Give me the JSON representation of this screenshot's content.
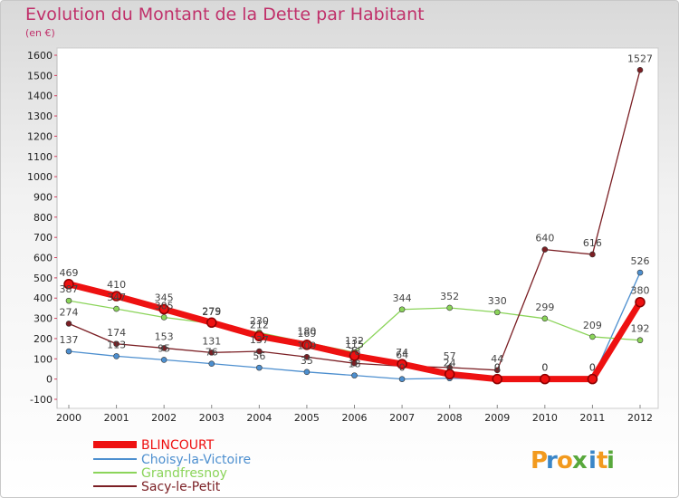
{
  "chart_data": {
    "type": "line",
    "title": "Evolution du Montant de la Dette par Habitant",
    "subtitle": "(en €)",
    "xlabel": "",
    "ylabel": "",
    "ylim": [
      -100,
      1600
    ],
    "ytick_step": 100,
    "grid": false,
    "legend_position": "bottom-left",
    "x": [
      "2000",
      "2001",
      "2002",
      "2003",
      "2004",
      "2005",
      "2006",
      "2007",
      "2008",
      "2009",
      "2010",
      "2011",
      "2012"
    ],
    "series": [
      {
        "name": "BLINCOURT",
        "color": "#ee1111",
        "values": [
          469,
          410,
          345,
          279,
          212,
          169,
          115,
          74,
          24,
          0,
          0,
          0,
          380
        ]
      },
      {
        "name": "Choisy-la-Victoire",
        "color": "#4d8fcf",
        "values": [
          137,
          113,
          95,
          76,
          56,
          35,
          18,
          0,
          4,
          0,
          0,
          0,
          526
        ]
      },
      {
        "name": "Grandfresnoy",
        "color": "#8bd45a",
        "values": [
          387,
          347,
          305,
          275,
          230,
          180,
          132,
          344,
          352,
          330,
          299,
          209,
          192
        ]
      },
      {
        "name": "Sacy-le-Petit",
        "color": "#7b1f24",
        "values": [
          274,
          174,
          153,
          131,
          137,
          109,
          78,
          64,
          57,
          44,
          640,
          616,
          1527
        ]
      }
    ]
  },
  "branding": {
    "logo_text": "Proxiti"
  }
}
